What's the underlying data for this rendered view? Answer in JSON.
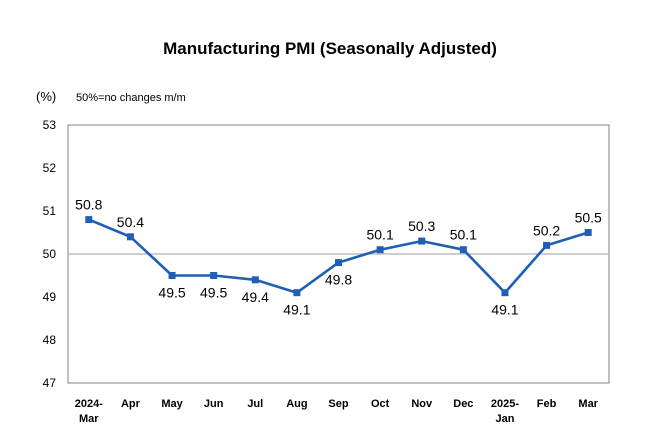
{
  "chart_data": {
    "type": "line",
    "title": "Manufacturing PMI (Seasonally Adjusted)",
    "unit_label": "(%)",
    "note": "50%=no changes m/m",
    "categories": [
      [
        "2024-",
        "Mar"
      ],
      [
        "Apr"
      ],
      [
        "May"
      ],
      [
        "Jun"
      ],
      [
        "Jul"
      ],
      [
        "Aug"
      ],
      [
        "Sep"
      ],
      [
        "Oct"
      ],
      [
        "Nov"
      ],
      [
        "Dec"
      ],
      [
        "2025-",
        "Jan"
      ],
      [
        "Feb"
      ],
      [
        "Mar"
      ]
    ],
    "series": [
      {
        "name": "Manufacturing PMI",
        "values": [
          50.8,
          50.4,
          49.5,
          49.5,
          49.4,
          49.1,
          49.8,
          50.1,
          50.3,
          50.1,
          49.1,
          50.2,
          50.5
        ],
        "labels": [
          "50.8",
          "50.4",
          "49.5",
          "49.5",
          "49.4",
          "49.1",
          "49.8",
          "50.1",
          "50.3",
          "50.1",
          "49.1",
          "50.2",
          "50.5"
        ],
        "label_position": [
          "above",
          "above",
          "below",
          "below",
          "below",
          "below",
          "below",
          "above",
          "above",
          "above",
          "below",
          "above",
          "above"
        ]
      }
    ],
    "ylim": [
      47,
      53
    ],
    "yticks": [
      "47",
      "48",
      "49",
      "50",
      "51",
      "52",
      "53"
    ],
    "reference_line": 50,
    "xlabel": "",
    "ylabel": "",
    "grid": false,
    "colors": {
      "line": "#1f5fb5",
      "reference": "#b0b0b0",
      "axis": "#808080"
    }
  }
}
